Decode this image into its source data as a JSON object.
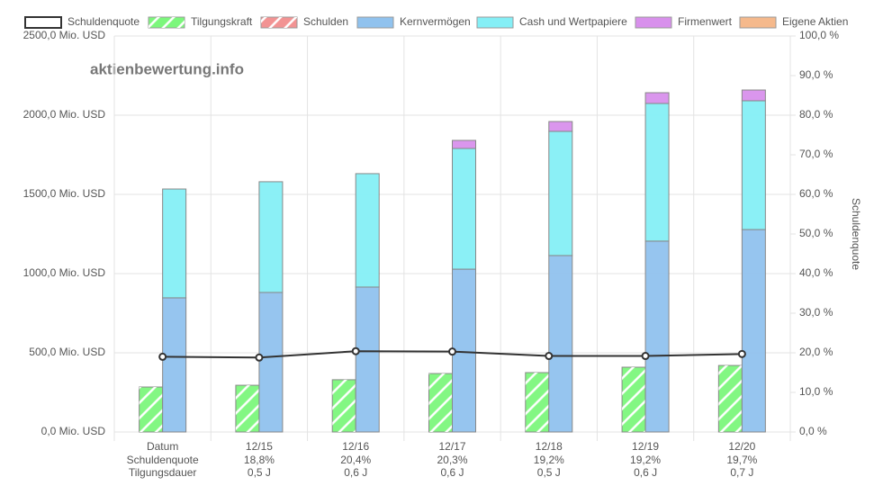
{
  "chart_data": {
    "type": "bar",
    "watermark": "aktienbewertung.info",
    "y2_label": "Schuldenquote",
    "categories": [
      "Datum",
      "12/15",
      "12/16",
      "12/17",
      "12/18",
      "12/19",
      "12/20"
    ],
    "x_label_rows": [
      [
        "Schuldenquote",
        "18,8%",
        "20,4%",
        "20,3%",
        "19,2%",
        "19,2%",
        "19,7%"
      ],
      [
        "Tilgungsdauer",
        "0,5 J",
        "0,6 J",
        "0,6 J",
        "0,5 J",
        "0,6 J",
        "0,7 J"
      ]
    ],
    "series": [
      {
        "name": "Schuldenquote",
        "type": "line",
        "axis": "y2",
        "color": "#333333",
        "values": [
          19.0,
          18.8,
          20.4,
          20.3,
          19.2,
          19.2,
          19.7
        ]
      },
      {
        "name": "Tilgungskraft",
        "type": "bar",
        "stack": "debt",
        "hatch": true,
        "color": "#7cf77c",
        "values": [
          284,
          295,
          330,
          369,
          375,
          409,
          420
        ]
      },
      {
        "name": "Schulden",
        "type": "bar",
        "stack": "debt",
        "hatch": true,
        "color": "#f29393",
        "values": [
          null,
          null,
          null,
          null,
          null,
          null,
          null
        ]
      },
      {
        "name": "Kernvermögen",
        "type": "bar",
        "stack": "assets",
        "color": "#90c2ee",
        "values": [
          847,
          881,
          915,
          1028,
          1114,
          1205,
          1278
        ]
      },
      {
        "name": "Cash und Wertpapiere",
        "type": "bar",
        "stack": "assets",
        "color": "#85eff6",
        "values": [
          687,
          699,
          716,
          762,
          784,
          869,
          813
        ]
      },
      {
        "name": "Firmenwert",
        "type": "bar",
        "stack": "assets",
        "color": "#d890ec",
        "values": [
          null,
          null,
          null,
          51,
          62,
          68,
          68
        ]
      },
      {
        "name": "Eigene Aktien",
        "type": "bar",
        "stack": "assets",
        "color": "#f5b98c",
        "values": [
          null,
          null,
          null,
          null,
          null,
          null,
          null
        ]
      }
    ],
    "ylim": [
      0,
      2500
    ],
    "yticks": [
      {
        "value": 0,
        "label": "0,0 Mio. USD"
      },
      {
        "value": 500,
        "label": "500,0 Mio. USD"
      },
      {
        "value": 1000,
        "label": "1000,0 Mio. USD"
      },
      {
        "value": 1500,
        "label": "1500,0 Mio. USD"
      },
      {
        "value": 2000,
        "label": "2000,0 Mio. USD"
      },
      {
        "value": 2500,
        "label": "2500,0 Mio. USD"
      }
    ],
    "y2lim": [
      0,
      100
    ],
    "y2ticks": [
      {
        "value": 0,
        "label": "0,0 %"
      },
      {
        "value": 10,
        "label": "10,0 %"
      },
      {
        "value": 20,
        "label": "20,0 %"
      },
      {
        "value": 30,
        "label": "30,0 %"
      },
      {
        "value": 40,
        "label": "40,0 %"
      },
      {
        "value": 50,
        "label": "50,0 %"
      },
      {
        "value": 60,
        "label": "60,0 %"
      },
      {
        "value": 70,
        "label": "70,0 %"
      },
      {
        "value": 80,
        "label": "80,0 %"
      },
      {
        "value": 90,
        "label": "90,0 %"
      },
      {
        "value": 100,
        "label": "100,0 %"
      }
    ],
    "grid": true
  }
}
